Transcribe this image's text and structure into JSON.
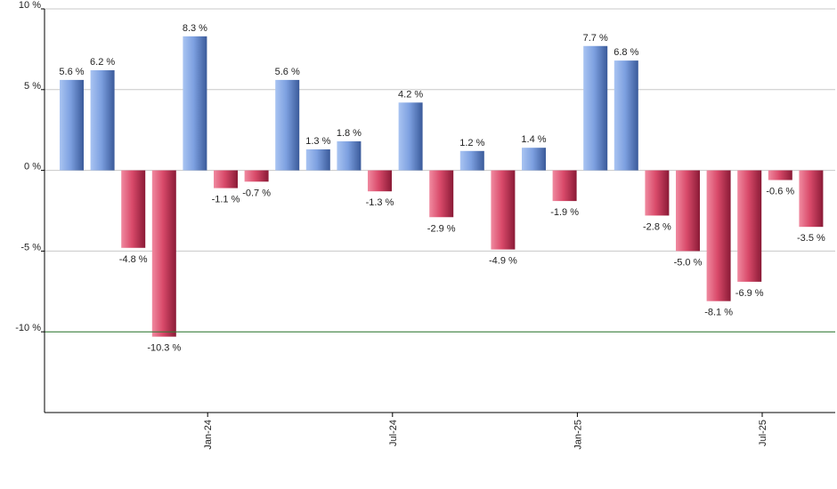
{
  "chart_data": {
    "type": "bar",
    "title": "",
    "xlabel": "",
    "ylabel": "",
    "ylim": [
      -15,
      10
    ],
    "y_ticks": [
      10,
      5,
      0,
      -5,
      -10
    ],
    "y_tick_labels": [
      "10 %",
      "5 %",
      "0 %",
      "-5 %",
      "-10 %"
    ],
    "grid": true,
    "reference_line": {
      "value": -10,
      "color": "#2e7d32"
    },
    "categories": [
      "2023-09",
      "2023-10",
      "2023-11",
      "2023-12",
      "2024-01",
      "2024-02",
      "2024-03",
      "2024-04",
      "2024-05",
      "2024-06",
      "2024-07",
      "2024-08",
      "2024-09",
      "2024-10",
      "2024-11",
      "2024-12",
      "2025-01",
      "2025-02",
      "2025-03",
      "2025-04",
      "2025-05",
      "2025-06",
      "2025-07",
      "2025-08",
      "2025-09"
    ],
    "values": [
      5.6,
      6.2,
      -4.8,
      -10.3,
      8.3,
      -1.1,
      -0.7,
      5.6,
      1.3,
      1.8,
      -1.3,
      4.2,
      -2.9,
      1.2,
      -4.9,
      1.4,
      -1.9,
      7.7,
      6.8,
      -2.8,
      -5.0,
      -8.1,
      -6.9,
      -0.6,
      -3.5
    ],
    "value_labels": [
      "5.6 %",
      "6.2 %",
      "-4.8 %",
      "-10.3 %",
      "8.3 %",
      "-1.1 %",
      "-0.7 %",
      "5.6 %",
      "1.3 %",
      "1.8 %",
      "-1.3 %",
      "4.2 %",
      "-2.9 %",
      "1.2 %",
      "-4.9 %",
      "1.4 %",
      "-1.9 %",
      "7.7 %",
      "6.8 %",
      "-2.8 %",
      "-5.0 %",
      "-8.1 %",
      "-6.9 %",
      "-0.6 %",
      "-3.5 %"
    ],
    "x_tick_labels": [
      {
        "category": "2024-01",
        "label": "Jan-24"
      },
      {
        "category": "2024-07",
        "label": "Jul-24"
      },
      {
        "category": "2025-01",
        "label": "Jan-25"
      },
      {
        "category": "2025-07",
        "label": "Jul-25"
      }
    ],
    "colors": {
      "positive": "#7da0e0",
      "positive_dark": "#3a5a9a",
      "negative": "#d94a6a",
      "negative_dark": "#8a1a36",
      "grid": "#c8c8c8",
      "axis": "#000000"
    }
  }
}
